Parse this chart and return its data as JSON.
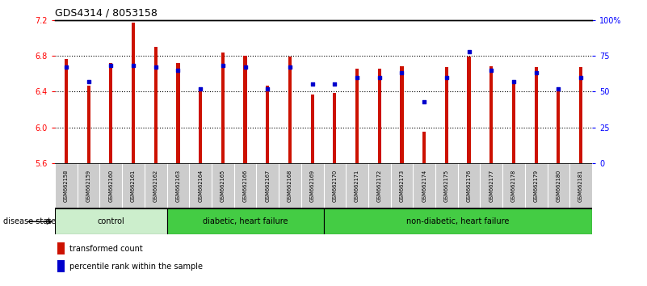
{
  "title": "GDS4314 / 8053158",
  "samples": [
    "GSM662158",
    "GSM662159",
    "GSM662160",
    "GSM662161",
    "GSM662162",
    "GSM662163",
    "GSM662164",
    "GSM662165",
    "GSM662166",
    "GSM662167",
    "GSM662168",
    "GSM662169",
    "GSM662170",
    "GSM662171",
    "GSM662172",
    "GSM662173",
    "GSM662174",
    "GSM662175",
    "GSM662176",
    "GSM662177",
    "GSM662178",
    "GSM662179",
    "GSM662180",
    "GSM662181"
  ],
  "bar_values": [
    6.76,
    6.47,
    6.72,
    7.17,
    6.9,
    6.72,
    6.44,
    6.84,
    6.8,
    6.47,
    6.79,
    6.37,
    6.38,
    6.66,
    6.66,
    6.68,
    5.95,
    6.67,
    6.79,
    6.68,
    6.48,
    6.67,
    6.41,
    6.67
  ],
  "percentile_values": [
    67,
    57,
    68,
    68,
    67,
    65,
    52,
    68,
    67,
    52,
    67,
    55,
    55,
    60,
    60,
    63,
    43,
    60,
    78,
    65,
    57,
    63,
    52,
    60
  ],
  "bar_color": "#cc1100",
  "percentile_color": "#0000cc",
  "ylim_left": [
    5.6,
    7.2
  ],
  "ylim_right": [
    0,
    100
  ],
  "yticks_left": [
    5.6,
    6.0,
    6.4,
    6.8,
    7.2
  ],
  "yticks_right": [
    0,
    25,
    50,
    75,
    100
  ],
  "ytick_labels_right": [
    "0",
    "25",
    "50",
    "75",
    "100%"
  ],
  "groups": [
    {
      "label": "control",
      "start": 0,
      "end": 5,
      "color": "#cceecc"
    },
    {
      "label": "diabetic, heart failure",
      "start": 5,
      "end": 12,
      "color": "#44cc44"
    },
    {
      "label": "non-diabetic, heart failure",
      "start": 12,
      "end": 24,
      "color": "#44cc44"
    }
  ],
  "disease_state_label": "disease state",
  "legend_items": [
    {
      "label": "transformed count",
      "color": "#cc1100"
    },
    {
      "label": "percentile rank within the sample",
      "color": "#0000cc"
    }
  ],
  "bar_width": 0.15,
  "tick_label_bg": "#cccccc",
  "grid_lines": [
    6.0,
    6.4,
    6.8
  ]
}
